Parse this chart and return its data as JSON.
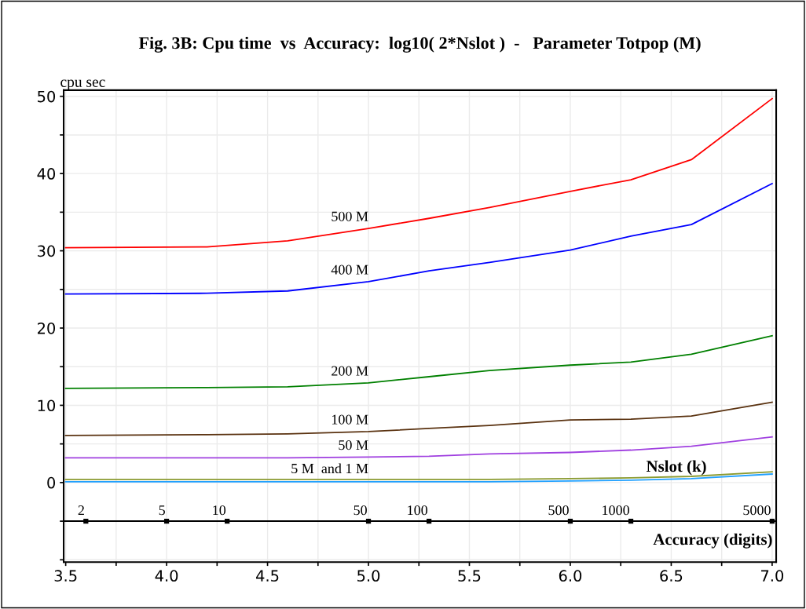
{
  "chart_data": {
    "type": "line",
    "title": "Fig. 3B: Cpu time  vs  Accuracy:  log10( 2*Nslot )  -   Parameter Totpop (M)",
    "ylabel": "cpu sec",
    "xlabel": "Accuracy (digits)",
    "x": [
      3.5,
      4.2,
      4.6,
      5.0,
      5.3,
      5.6,
      6.0,
      6.3,
      6.6,
      7.0
    ],
    "series": [
      {
        "name": "500 M",
        "color": "#ff0000",
        "values": [
          30.4,
          30.5,
          31.3,
          32.9,
          34.2,
          35.6,
          37.7,
          39.2,
          41.8,
          49.7
        ]
      },
      {
        "name": "400 M",
        "color": "#0000ff",
        "values": [
          24.4,
          24.5,
          24.8,
          26.0,
          27.4,
          28.5,
          30.1,
          31.9,
          33.4,
          38.7
        ]
      },
      {
        "name": "200 M",
        "color": "#008000",
        "values": [
          12.2,
          12.3,
          12.4,
          12.9,
          13.7,
          14.5,
          15.2,
          15.6,
          16.6,
          19.0
        ]
      },
      {
        "name": "100 M",
        "color": "#5a3210",
        "values": [
          6.1,
          6.2,
          6.3,
          6.6,
          7.0,
          7.4,
          8.1,
          8.2,
          8.6,
          10.4
        ]
      },
      {
        "name": "50 M",
        "color": "#a040e0",
        "values": [
          3.2,
          3.2,
          3.2,
          3.3,
          3.4,
          3.7,
          3.9,
          4.2,
          4.7,
          5.9
        ]
      },
      {
        "color": "#8a9a30",
        "values": [
          0.4,
          0.4,
          0.4,
          0.4,
          0.4,
          0.4,
          0.5,
          0.6,
          0.8,
          1.4
        ]
      },
      {
        "color": "#20a0ff",
        "values": [
          0.1,
          0.1,
          0.1,
          0.1,
          0.1,
          0.1,
          0.2,
          0.3,
          0.5,
          1.1
        ]
      }
    ],
    "xlim": [
      3.49,
      7.02
    ],
    "ylim": [
      -10.3,
      50.8
    ],
    "xticks": [
      3.5,
      {
        "value": 3.75,
        "label": null
      },
      {
        "value": 4,
        "label": "4.0"
      },
      {
        "value": 4.25,
        "label": null
      },
      4.5,
      {
        "value": 4.75,
        "label": null
      },
      {
        "value": 5,
        "label": "5.0"
      },
      {
        "value": 5.25,
        "label": null
      },
      5.5,
      {
        "value": 5.75,
        "label": null
      },
      {
        "value": 6,
        "label": "6.0"
      },
      {
        "value": 6.25,
        "label": null
      },
      6.5,
      {
        "value": 6.75,
        "label": null
      },
      {
        "value": 7,
        "label": "7.0"
      }
    ],
    "yticks": [
      {
        "value": -10,
        "label": null
      },
      {
        "value": -5,
        "label": null
      },
      0,
      {
        "value": 5,
        "label": null
      },
      10,
      {
        "value": 15,
        "label": null
      },
      20,
      {
        "value": 25,
        "label": null
      },
      30,
      {
        "value": 35,
        "label": null
      },
      40,
      {
        "value": 45,
        "label": null
      },
      50
    ],
    "ref_lines": [
      {
        "axis": "y",
        "value": -5,
        "color": "#000000",
        "line_style": "solid"
      }
    ],
    "annotations": [
      {
        "text": "5 M  and 1 M",
        "x": 5.0,
        "y": 0.4
      },
      "Nslot (k)",
      {
        "text": "2",
        "x": 3.6,
        "y": -5
      },
      {
        "text": "5",
        "x": 4.0,
        "y": -5
      },
      {
        "text": "10",
        "x": 4.3,
        "y": -5
      },
      {
        "text": "50",
        "x": 5.0,
        "y": -5
      },
      {
        "text": "100",
        "x": 5.3,
        "y": -5
      },
      {
        "text": "500",
        "x": 6.0,
        "y": -5
      },
      {
        "text": "1000",
        "x": 6.3,
        "y": -5
      },
      {
        "text": "5000",
        "x": 7.0,
        "y": -5
      }
    ],
    "grid": true,
    "marker": "none",
    "line_style": "solid"
  }
}
